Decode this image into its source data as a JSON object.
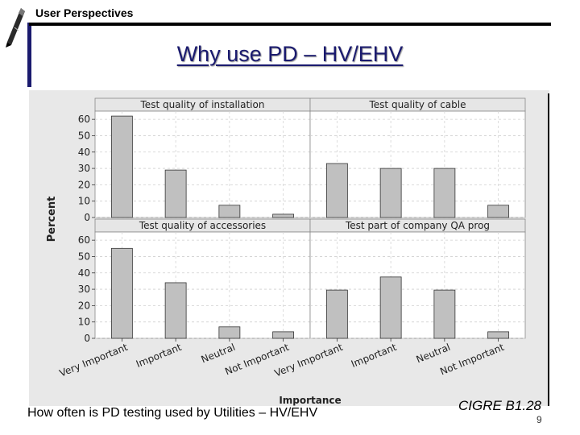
{
  "header": {
    "section": "User Perspectives"
  },
  "slide": {
    "title": "Why use PD – HV/EHV",
    "caption": "How often is PD testing used by Utilities – HV/EHV",
    "source": "CIGRE B1.28",
    "page_number": "9"
  },
  "icons": {
    "logo": "pen-logo-icon"
  },
  "colors": {
    "bar": "#c0c0c0",
    "panel_bg": "#ffffff",
    "header_bg": "#e6e6e6",
    "outer_bg": "#e8e8e8",
    "title": "#1a1a6e"
  },
  "chart_data": {
    "type": "bar",
    "layout": "2x2 panel grid, shared axes",
    "xlabel": "Importance",
    "ylabel": "Percent",
    "ylim": [
      0,
      65
    ],
    "yticks": [
      0,
      10,
      20,
      30,
      40,
      50,
      60
    ],
    "categories": [
      "Very Important",
      "Important",
      "Neutral",
      "Not Important"
    ],
    "grid": true,
    "panels": [
      {
        "title": "Test quality of installation",
        "values": [
          62,
          29,
          7.5,
          2
        ]
      },
      {
        "title": "Test quality of cable",
        "values": [
          33,
          30,
          30,
          7.5
        ]
      },
      {
        "title": "Test quality of accessories",
        "values": [
          55,
          34,
          7,
          4
        ]
      },
      {
        "title": "Test part of company QA prog",
        "values": [
          29.5,
          37.5,
          29.5,
          4
        ]
      }
    ]
  }
}
